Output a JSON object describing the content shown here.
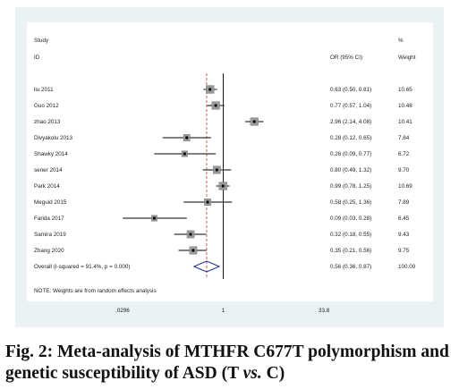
{
  "chart_data": {
    "type": "forest",
    "header": {
      "study": "Study",
      "id": "ID",
      "effect": "OR (95% CI)",
      "pct": "%",
      "weight": "Weight"
    },
    "x_scale": "log",
    "x_ticks": [
      {
        "value": 0.0296,
        "label": ".0296"
      },
      {
        "value": 1,
        "label": "1"
      },
      {
        "value": 33.8,
        "label": "33.8"
      }
    ],
    "null_line": 1,
    "overall_line": 0.56,
    "studies": [
      {
        "id": "liu 2011",
        "or": 0.63,
        "lo": 0.5,
        "hi": 0.81,
        "ci_text": "0.63 (0.50, 0.81)",
        "weight": "10.65"
      },
      {
        "id": "Guo 2012",
        "or": 0.77,
        "lo": 0.57,
        "hi": 1.04,
        "ci_text": "0.77 (0.57, 1.04)",
        "weight": "10.48"
      },
      {
        "id": "zhao 2013",
        "or": 2.96,
        "lo": 2.14,
        "hi": 4.08,
        "ci_text": "2.96 (2.14, 4.08)",
        "weight": "10.41"
      },
      {
        "id": "Divyakolu 2013",
        "or": 0.28,
        "lo": 0.12,
        "hi": 0.65,
        "ci_text": "0.28 (0.12, 0.65)",
        "weight": "7.84"
      },
      {
        "id": "Shawky 2014",
        "or": 0.26,
        "lo": 0.09,
        "hi": 0.77,
        "ci_text": "0.26 (0.09, 0.77)",
        "weight": "6.72"
      },
      {
        "id": "sener 2014",
        "or": 0.8,
        "lo": 0.49,
        "hi": 1.32,
        "ci_text": "0.80 (0.49, 1.32)",
        "weight": "9.70"
      },
      {
        "id": "Park 2014",
        "or": 0.99,
        "lo": 0.78,
        "hi": 1.25,
        "ci_text": "0.99 (0.78, 1.25)",
        "weight": "10.69"
      },
      {
        "id": "Meguid 2015",
        "or": 0.58,
        "lo": 0.25,
        "hi": 1.36,
        "ci_text": "0.58 (0.25, 1.36)",
        "weight": "7.89"
      },
      {
        "id": "Farida 2017",
        "or": 0.09,
        "lo": 0.03,
        "hi": 0.28,
        "ci_text": "0.09 (0.03, 0.28)",
        "weight": "6.45"
      },
      {
        "id": "Samira 2019",
        "or": 0.32,
        "lo": 0.18,
        "hi": 0.55,
        "ci_text": "0.32 (0.18, 0.55)",
        "weight": "9.43"
      },
      {
        "id": "Zhang 2020",
        "or": 0.35,
        "lo": 0.21,
        "hi": 0.56,
        "ci_text": "0.35 (0.21, 0.56)",
        "weight": "9.75"
      }
    ],
    "overall": {
      "label": "Overall  (I-squared = 91.4%, p = 0.000)",
      "or": 0.56,
      "lo": 0.36,
      "hi": 0.87,
      "ci_text": "0.56 (0.36, 0.87)",
      "weight": "100.00"
    },
    "note": "NOTE: Weights are from random effects analysis",
    "colors": {
      "panel_bg": "#eaf2f3",
      "plot_bg": "#ffffff",
      "marker": "#000000",
      "diamond": "#1f2f8f",
      "overall_line": "#c0392b",
      "null_line": "#000000"
    }
  },
  "caption": {
    "part1": "Fig. 2: Meta-analysis of MTHFR C677T polymorphism and genetic susceptibility of ASD (T ",
    "vs": "vs.",
    "part2": " C)"
  }
}
